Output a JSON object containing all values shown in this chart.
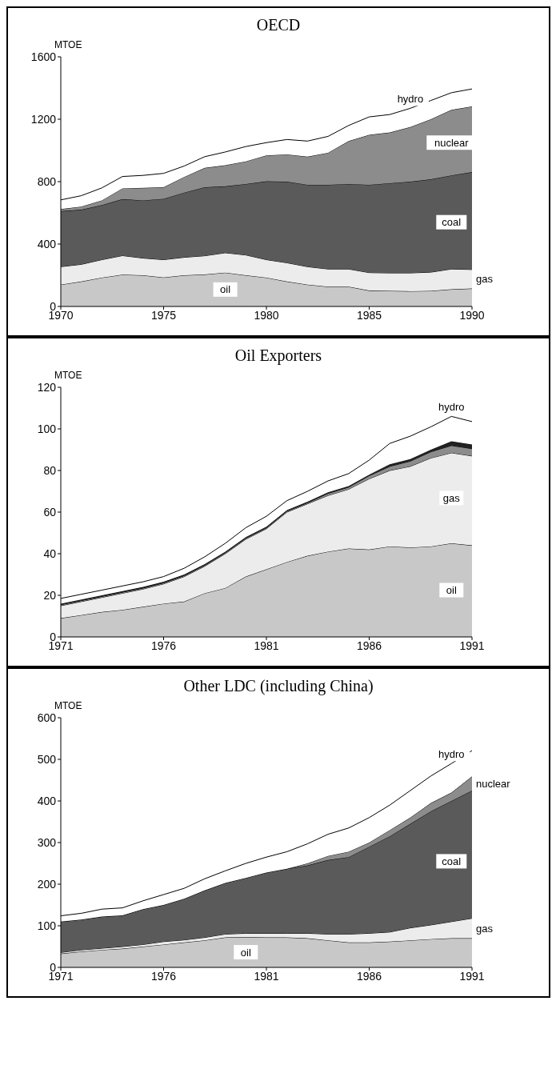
{
  "chart_data": [
    {
      "type": "area",
      "title": "OECD",
      "ylabel": "MTOE",
      "stacked": true,
      "x": [
        1970,
        1971,
        1972,
        1973,
        1974,
        1975,
        1976,
        1977,
        1978,
        1979,
        1980,
        1981,
        1982,
        1983,
        1984,
        1985,
        1986,
        1987,
        1988,
        1989,
        1990
      ],
      "xlim": [
        1970,
        1990
      ],
      "xticks": [
        1970,
        1975,
        1980,
        1985,
        1990
      ],
      "ylim": [
        0,
        1600
      ],
      "yticks": [
        0,
        400,
        800,
        1200,
        1600
      ],
      "series": [
        {
          "name": "oil",
          "color": "#c8c8c8",
          "values": [
            140,
            160,
            185,
            204,
            200,
            186,
            200,
            205,
            217,
            200,
            185,
            160,
            140,
            127,
            127,
            102,
            100,
            98,
            100,
            110,
            115
          ]
        },
        {
          "name": "gas",
          "color": "#ececec",
          "values": [
            115,
            110,
            115,
            122,
            110,
            114,
            115,
            120,
            127,
            130,
            115,
            120,
            115,
            113,
            113,
            115,
            115,
            117,
            120,
            130,
            122
          ]
        },
        {
          "name": "coal",
          "color": "#5a5a5a",
          "values": [
            356,
            350,
            350,
            362,
            370,
            390,
            415,
            439,
            426,
            455,
            502,
            520,
            525,
            540,
            545,
            563,
            575,
            585,
            595,
            600,
            624
          ]
        },
        {
          "name": "nuclear",
          "color": "#8c8c8c",
          "values": [
            13,
            20,
            30,
            69,
            80,
            74,
            100,
            124,
            135,
            145,
            166,
            175,
            180,
            205,
            275,
            320,
            325,
            350,
            385,
            420,
            421
          ]
        },
        {
          "name": "hydro",
          "color": "#ffffff",
          "values": [
            59,
            70,
            80,
            76,
            80,
            89,
            70,
            72,
            85,
            95,
            82,
            95,
            100,
            105,
            100,
            115,
            115,
            120,
            120,
            110,
            112
          ]
        }
      ]
    },
    {
      "type": "area",
      "title": "Oil Exporters",
      "ylabel": "MTOE",
      "stacked": true,
      "x": [
        1971,
        1972,
        1973,
        1974,
        1975,
        1976,
        1977,
        1978,
        1979,
        1980,
        1981,
        1982,
        1983,
        1984,
        1985,
        1986,
        1987,
        1988,
        1989,
        1990,
        1991
      ],
      "xlim": [
        1971,
        1991
      ],
      "xticks": [
        1971,
        1976,
        1981,
        1986,
        1991
      ],
      "ylim": [
        0,
        120
      ],
      "yticks": [
        0,
        20,
        40,
        60,
        80,
        100,
        120
      ],
      "series": [
        {
          "name": "oil",
          "color": "#c8c8c8",
          "values": [
            9,
            10.5,
            12,
            13,
            14.5,
            16,
            17,
            21,
            23.5,
            29,
            32.5,
            36,
            39,
            41,
            42.5,
            42,
            43.5,
            43,
            43.5,
            45,
            44
          ]
        },
        {
          "name": "gas",
          "color": "#ececec",
          "values": [
            6,
            6.5,
            7,
            8,
            8.5,
            9.5,
            12,
            13,
            16.5,
            18,
            19.5,
            24,
            25,
            27,
            28.5,
            34,
            36.5,
            39,
            42.5,
            43.5,
            43
          ]
        },
        {
          "color": "#8c8c8c",
          "values": [
            0.5,
            0.5,
            0.5,
            0.5,
            0.5,
            0.5,
            0.5,
            0.5,
            0.5,
            0.5,
            0.5,
            0.5,
            0.5,
            1,
            1,
            1.5,
            2,
            2.5,
            3,
            3.5,
            3.5
          ]
        },
        {
          "color": "#222222",
          "values": [
            0.5,
            0.5,
            0.5,
            0.5,
            0.5,
            0.5,
            0.5,
            0.5,
            0.5,
            0.5,
            0.5,
            0.5,
            0.5,
            0.5,
            0.5,
            0.5,
            1,
            1,
            1,
            2,
            2
          ]
        },
        {
          "name": "hydro",
          "color": "#ffffff",
          "values": [
            2.5,
            2.5,
            2.5,
            2.5,
            2.5,
            2.5,
            3,
            3.5,
            4,
            4.5,
            5,
            4.5,
            5,
            5.5,
            6,
            7,
            10,
            11,
            11,
            12,
            11
          ]
        }
      ]
    },
    {
      "type": "area",
      "title": "Other LDC (including China)",
      "ylabel": "MTOE",
      "stacked": true,
      "x": [
        1971,
        1972,
        1973,
        1974,
        1975,
        1976,
        1977,
        1978,
        1979,
        1980,
        1981,
        1982,
        1983,
        1984,
        1985,
        1986,
        1987,
        1988,
        1989,
        1990,
        1991
      ],
      "xlim": [
        1971,
        1991
      ],
      "xticks": [
        1971,
        1976,
        1981,
        1986,
        1991
      ],
      "ylim": [
        0,
        600
      ],
      "yticks": [
        0,
        100,
        200,
        300,
        400,
        500,
        600
      ],
      "series": [
        {
          "name": "oil",
          "color": "#c8c8c8",
          "values": [
            33,
            38,
            42,
            45,
            50,
            55,
            60,
            65,
            72,
            73,
            72,
            72,
            70,
            65,
            60,
            60,
            62,
            65,
            68,
            70,
            70
          ]
        },
        {
          "name": "gas",
          "color": "#ececec",
          "values": [
            3,
            4,
            4,
            5,
            5,
            7,
            6,
            7,
            8,
            9,
            10,
            10,
            12,
            15,
            20,
            22,
            23,
            30,
            34,
            40,
            48
          ]
        },
        {
          "name": "coal",
          "color": "#5a5a5a",
          "values": [
            74,
            73,
            76,
            75,
            85,
            88,
            99,
            113,
            123,
            133,
            146,
            155,
            163,
            178,
            185,
            208,
            230,
            250,
            273,
            290,
            307
          ]
        },
        {
          "name": "nuclear",
          "color": "#8c8c8c",
          "values": [
            0,
            0,
            0,
            0,
            0,
            0,
            0,
            0,
            0,
            0,
            0,
            0,
            5,
            10,
            13,
            10,
            15,
            15,
            20,
            20,
            34
          ]
        },
        {
          "name": "hydro",
          "color": "#ffffff",
          "values": [
            14,
            15,
            18,
            18,
            20,
            25,
            25,
            28,
            29,
            35,
            37,
            41,
            47,
            52,
            57,
            60,
            60,
            65,
            65,
            70,
            62
          ]
        }
      ]
    }
  ]
}
